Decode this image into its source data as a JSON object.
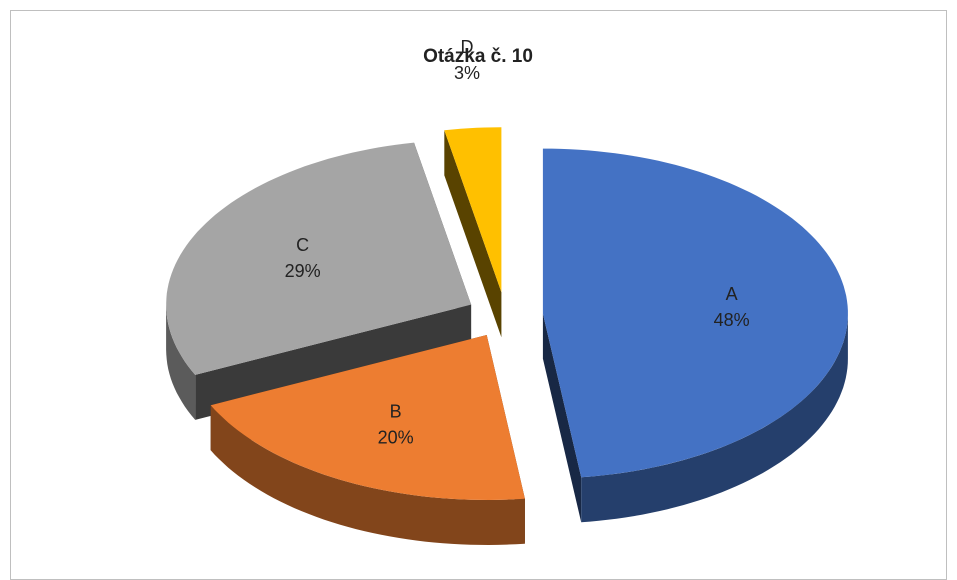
{
  "chart_data": {
    "type": "pie3d",
    "title": "Otázka č. 10",
    "categories": [
      "A",
      "B",
      "C",
      "D"
    ],
    "values": [
      48,
      20,
      29,
      3
    ],
    "value_labels": [
      "48%",
      "20%",
      "29%",
      "3%"
    ],
    "colors": [
      "#4472c4",
      "#ed7d31",
      "#a5a5a5",
      "#ffc000"
    ]
  }
}
